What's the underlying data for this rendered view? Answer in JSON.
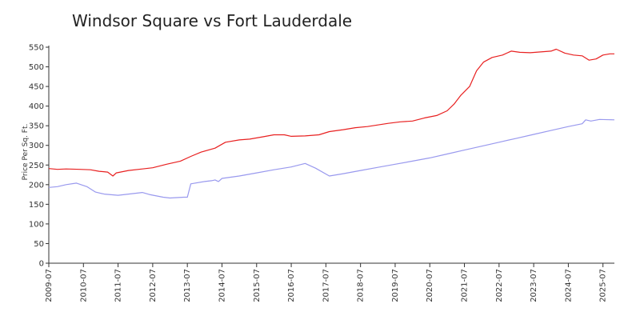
{
  "chart_data": {
    "type": "line",
    "title": "Windsor Square vs Fort Lauderdale",
    "xlabel": "",
    "ylabel": "Price Per Sq. Ft.",
    "ylim": [
      0,
      550
    ],
    "yticks": [
      0,
      50,
      100,
      150,
      200,
      250,
      300,
      350,
      400,
      450,
      500,
      550
    ],
    "xlim": [
      2009.5,
      2025.83
    ],
    "xticks": [
      "2009-07",
      "2010-07",
      "2011-07",
      "2012-07",
      "2013-07",
      "2014-07",
      "2015-07",
      "2016-07",
      "2017-07",
      "2018-07",
      "2019-07",
      "2020-07",
      "2021-07",
      "2022-07",
      "2023-07",
      "2024-07",
      "2025-07"
    ],
    "grid": false,
    "series": [
      {
        "name": "Windsor Square",
        "color": "#e82020",
        "points": [
          [
            2009.5,
            241
          ],
          [
            2009.75,
            239
          ],
          [
            2010.0,
            240
          ],
          [
            2010.4,
            239
          ],
          [
            2010.7,
            238
          ],
          [
            2010.95,
            234
          ],
          [
            2011.2,
            232
          ],
          [
            2011.35,
            222
          ],
          [
            2011.45,
            230
          ],
          [
            2011.8,
            236
          ],
          [
            2012.2,
            240
          ],
          [
            2012.5,
            243
          ],
          [
            2012.9,
            252
          ],
          [
            2013.3,
            260
          ],
          [
            2013.6,
            272
          ],
          [
            2013.9,
            283
          ],
          [
            2014.3,
            293
          ],
          [
            2014.6,
            308
          ],
          [
            2015.0,
            314
          ],
          [
            2015.3,
            316
          ],
          [
            2015.7,
            322
          ],
          [
            2016.0,
            327
          ],
          [
            2016.3,
            327
          ],
          [
            2016.5,
            323
          ],
          [
            2016.9,
            324
          ],
          [
            2017.3,
            327
          ],
          [
            2017.6,
            335
          ],
          [
            2018.0,
            340
          ],
          [
            2018.35,
            345
          ],
          [
            2018.7,
            348
          ],
          [
            2019.0,
            352
          ],
          [
            2019.3,
            356
          ],
          [
            2019.65,
            360
          ],
          [
            2020.0,
            362
          ],
          [
            2020.35,
            370
          ],
          [
            2020.7,
            376
          ],
          [
            2021.0,
            388
          ],
          [
            2021.2,
            405
          ],
          [
            2021.4,
            428
          ],
          [
            2021.65,
            450
          ],
          [
            2021.85,
            490
          ],
          [
            2022.05,
            512
          ],
          [
            2022.3,
            524
          ],
          [
            2022.6,
            530
          ],
          [
            2022.85,
            540
          ],
          [
            2023.1,
            537
          ],
          [
            2023.4,
            536
          ],
          [
            2023.7,
            538
          ],
          [
            2024.0,
            540
          ],
          [
            2024.15,
            545
          ],
          [
            2024.4,
            535
          ],
          [
            2024.65,
            530
          ],
          [
            2024.9,
            528
          ],
          [
            2025.1,
            517
          ],
          [
            2025.3,
            520
          ],
          [
            2025.5,
            530
          ],
          [
            2025.7,
            533
          ],
          [
            2025.83,
            533
          ]
        ]
      },
      {
        "name": "Fort Lauderdale",
        "color": "#9999ee",
        "points": [
          [
            2009.5,
            193
          ],
          [
            2009.75,
            195
          ],
          [
            2010.0,
            200
          ],
          [
            2010.3,
            204
          ],
          [
            2010.6,
            195
          ],
          [
            2010.85,
            181
          ],
          [
            2011.1,
            176
          ],
          [
            2011.5,
            173
          ],
          [
            2011.9,
            177
          ],
          [
            2012.2,
            180
          ],
          [
            2012.4,
            175
          ],
          [
            2012.8,
            168
          ],
          [
            2013.0,
            166
          ],
          [
            2013.4,
            168
          ],
          [
            2013.5,
            168
          ],
          [
            2013.6,
            202
          ],
          [
            2014.0,
            208
          ],
          [
            2014.2,
            210
          ],
          [
            2014.3,
            212
          ],
          [
            2014.4,
            208
          ],
          [
            2014.5,
            216
          ],
          [
            2015.0,
            222
          ],
          [
            2015.5,
            230
          ],
          [
            2016.0,
            238
          ],
          [
            2016.5,
            245
          ],
          [
            2016.9,
            254
          ],
          [
            2017.2,
            242
          ],
          [
            2017.6,
            222
          ],
          [
            2018.0,
            228
          ],
          [
            2018.5,
            236
          ],
          [
            2019.0,
            244
          ],
          [
            2019.5,
            252
          ],
          [
            2020.0,
            260
          ],
          [
            2020.5,
            268
          ],
          [
            2021.0,
            278
          ],
          [
            2021.5,
            288
          ],
          [
            2022.0,
            298
          ],
          [
            2022.5,
            308
          ],
          [
            2023.0,
            318
          ],
          [
            2023.5,
            328
          ],
          [
            2024.0,
            338
          ],
          [
            2024.5,
            348
          ],
          [
            2024.9,
            355
          ],
          [
            2025.0,
            365
          ],
          [
            2025.15,
            362
          ],
          [
            2025.4,
            366
          ],
          [
            2025.83,
            365
          ]
        ]
      }
    ]
  }
}
